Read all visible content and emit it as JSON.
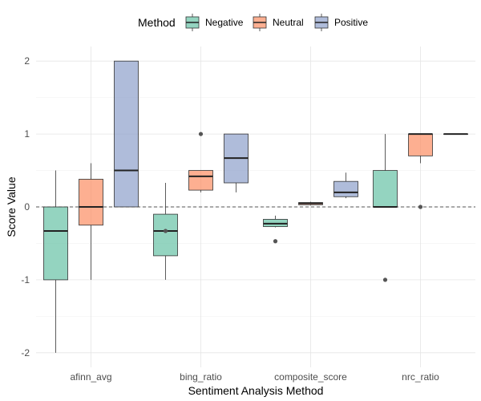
{
  "chart_data": {
    "type": "boxplot",
    "xlabel": "Sentiment Analysis Method",
    "ylabel": "Score Value",
    "ylim": [
      -2.2,
      2.2
    ],
    "yticks": [
      -2,
      -1,
      0,
      1,
      2
    ],
    "grid": true,
    "reference_line": {
      "y": 0,
      "style": "dashed"
    },
    "legend": {
      "title": "Method",
      "position": "top"
    },
    "categories": [
      "afinn_avg",
      "bing_ratio",
      "composite_score",
      "nrc_ratio"
    ],
    "series": [
      {
        "name": "Negative",
        "color": "#66C2A5",
        "boxes": [
          {
            "whisker_low": -2.0,
            "q1": -1.0,
            "median": -0.33,
            "q3": 0.0,
            "whisker_high": 0.5,
            "outliers": []
          },
          {
            "whisker_low": -1.0,
            "q1": -0.67,
            "median": -0.33,
            "q3": -0.1,
            "whisker_high": 0.33,
            "outliers": [
              -0.33
            ]
          },
          {
            "whisker_low": -0.28,
            "q1": -0.27,
            "median": -0.23,
            "q3": -0.17,
            "whisker_high": -0.12,
            "outliers": [
              -0.47
            ]
          },
          {
            "whisker_low": 0.0,
            "q1": 0.0,
            "median": 0.0,
            "q3": 0.5,
            "whisker_high": 1.0,
            "outliers": [
              -1.0
            ]
          }
        ]
      },
      {
        "name": "Neutral",
        "color": "#FC8D62",
        "boxes": [
          {
            "whisker_low": -1.0,
            "q1": -0.25,
            "median": 0.0,
            "q3": 0.38,
            "whisker_high": 0.6,
            "outliers": []
          },
          {
            "whisker_low": 0.2,
            "q1": 0.23,
            "median": 0.42,
            "q3": 0.5,
            "whisker_high": 0.5,
            "outliers": [
              1.0
            ]
          },
          {
            "whisker_low": 0.02,
            "q1": 0.03,
            "median": 0.05,
            "q3": 0.06,
            "whisker_high": 0.07,
            "outliers": []
          },
          {
            "whisker_low": 0.6,
            "q1": 0.7,
            "median": 1.0,
            "q3": 1.0,
            "whisker_high": 1.0,
            "outliers": [
              0.0
            ]
          }
        ]
      },
      {
        "name": "Positive",
        "color": "#8DA0CB",
        "boxes": [
          {
            "whisker_low": 0.0,
            "q1": 0.0,
            "median": 0.5,
            "q3": 2.0,
            "whisker_high": 2.0,
            "outliers": []
          },
          {
            "whisker_low": 0.2,
            "q1": 0.33,
            "median": 0.67,
            "q3": 1.0,
            "whisker_high": 1.0,
            "outliers": []
          },
          {
            "whisker_low": 0.12,
            "q1": 0.14,
            "median": 0.2,
            "q3": 0.35,
            "whisker_high": 0.47,
            "outliers": []
          },
          {
            "whisker_low": 1.0,
            "q1": 1.0,
            "median": 1.0,
            "q3": 1.0,
            "whisker_high": 1.0,
            "outliers": []
          }
        ]
      }
    ]
  }
}
